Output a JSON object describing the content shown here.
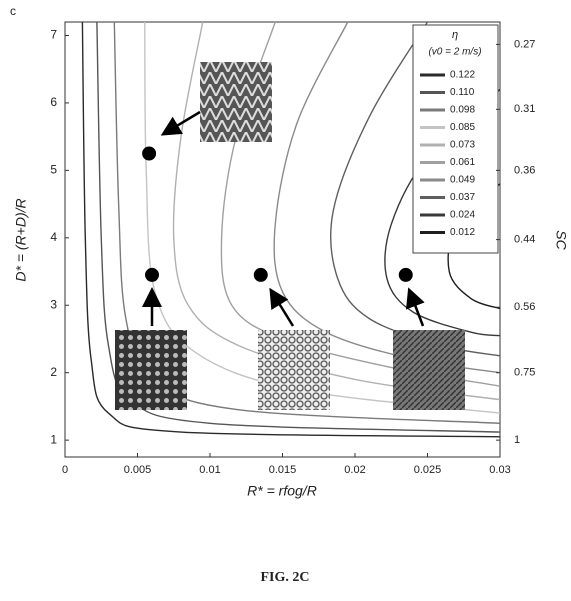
{
  "chart_data": {
    "type": "contour",
    "panel_label": "c",
    "xlabel": "R* = rfog/R",
    "ylabel": "D* = (R+D)/R",
    "y2label": "SC",
    "legend_title": "η",
    "legend_subtitle": "(v0 = 2 m/s)",
    "legend_position": "upper right",
    "xlim": [
      0,
      0.03
    ],
    "xticks": [
      0,
      0.005,
      0.01,
      0.015,
      0.02,
      0.025,
      0.03
    ],
    "ylim": [
      0.75,
      7.2
    ],
    "yticks": [
      1,
      2,
      3,
      4,
      5,
      6,
      7
    ],
    "y2ticks": [
      0.27,
      0.31,
      0.36,
      0.44,
      0.56,
      0.75,
      1
    ],
    "series": [
      {
        "name": "0.122",
        "color": "#2a2a2a",
        "x": [
          0.0012,
          0.0014,
          0.0018,
          0.003,
          0.008,
          0.03
        ],
        "values": [
          7.2,
          4,
          2.2,
          1.4,
          1.12,
          1.05
        ]
      },
      {
        "name": "0.110",
        "color": "#555555",
        "x": [
          0.0022,
          0.0025,
          0.003,
          0.0045,
          0.01,
          0.03
        ],
        "values": [
          7.2,
          4,
          2.4,
          1.6,
          1.25,
          1.12
        ]
      },
      {
        "name": "0.098",
        "color": "#7a7a7a",
        "x": [
          0.0034,
          0.0037,
          0.0042,
          0.006,
          0.012,
          0.03
        ],
        "values": [
          7.2,
          4.5,
          2.8,
          1.9,
          1.45,
          1.25
        ]
      },
      {
        "name": "0.085",
        "color": "#c4c4c4",
        "x": [
          0.0055,
          0.0056,
          0.0062,
          0.009,
          0.016,
          0.03
        ],
        "values": [
          7.2,
          5,
          3.2,
          2.3,
          1.75,
          1.4
        ]
      },
      {
        "name": "0.073",
        "color": "#b0b0b0",
        "x": [
          0.0095,
          0.008,
          0.0075,
          0.0085,
          0.012,
          0.02,
          0.03
        ],
        "values": [
          7.2,
          5.5,
          4,
          3,
          2.4,
          1.9,
          1.6
        ]
      },
      {
        "name": "0.061",
        "color": "#a0a0a0",
        "x": [
          0.0145,
          0.0118,
          0.0108,
          0.0115,
          0.015,
          0.022,
          0.03
        ],
        "values": [
          7.2,
          5.5,
          4,
          3,
          2.5,
          2.1,
          1.8
        ]
      },
      {
        "name": "0.049",
        "color": "#8a8a8a",
        "x": [
          0.0195,
          0.016,
          0.0145,
          0.015,
          0.018,
          0.024,
          0.03
        ],
        "values": [
          7.2,
          5.7,
          4.2,
          3.2,
          2.6,
          2.2,
          2.0
        ]
      },
      {
        "name": "0.037",
        "color": "#5e5e5e",
        "x": [
          0.025,
          0.021,
          0.0185,
          0.0188,
          0.021,
          0.026,
          0.03
        ],
        "values": [
          7.2,
          5.8,
          4.4,
          3.4,
          2.8,
          2.4,
          2.25
        ]
      },
      {
        "name": "0.024",
        "color": "#383838",
        "x": [
          0.03,
          0.025,
          0.0225,
          0.0222,
          0.024,
          0.028,
          0.03
        ],
        "values": [
          6.2,
          5.2,
          4.2,
          3.4,
          2.9,
          2.6,
          2.55
        ]
      },
      {
        "name": "0.012",
        "color": "#1e1e1e",
        "x": [
          0.03,
          0.027,
          0.0265,
          0.028,
          0.03
        ],
        "values": [
          4.8,
          4.2,
          3.5,
          3.1,
          2.95
        ]
      }
    ],
    "points": {
      "x": [
        0.0058,
        0.006,
        0.0135,
        0.0235
      ],
      "values": [
        5.25,
        3.45,
        3.45,
        3.45
      ],
      "color": "#000000"
    },
    "caption": "FIG. 2C"
  }
}
